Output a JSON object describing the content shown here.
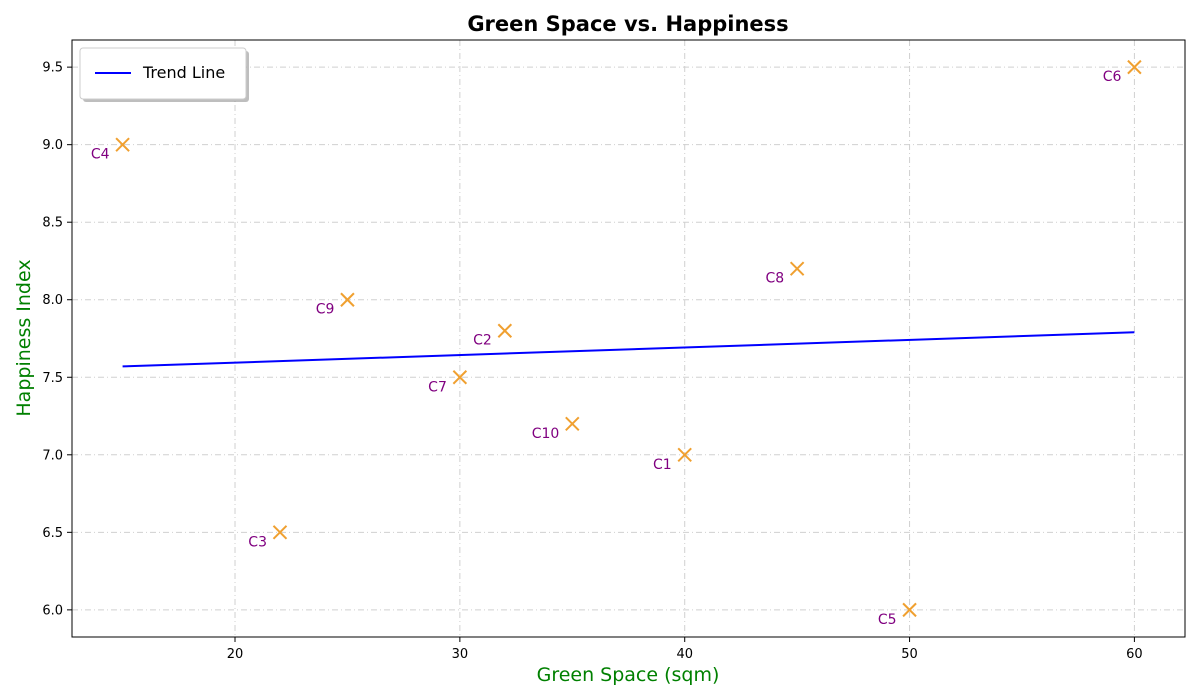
{
  "chart_data": {
    "type": "scatter",
    "title": "Green Space vs. Happiness",
    "xlabel": "Green Space (sqm)",
    "ylabel": "Happiness Index",
    "xlim": [
      12.75,
      62.25
    ],
    "ylim": [
      5.825,
      9.675
    ],
    "xticks": [
      20,
      30,
      40,
      50,
      60
    ],
    "yticks": [
      6.0,
      6.5,
      7.0,
      7.5,
      8.0,
      8.5,
      9.0,
      9.5
    ],
    "xtick_labels": [
      "20",
      "30",
      "40",
      "50",
      "60"
    ],
    "ytick_labels": [
      "6.0",
      "6.5",
      "7.0",
      "7.5",
      "8.0",
      "8.5",
      "9.0",
      "9.5"
    ],
    "grid": true,
    "legend": {
      "placement": "top-left",
      "entries": [
        "Trend Line"
      ]
    },
    "points": [
      {
        "label": "C1",
        "x": 40,
        "y": 7.0
      },
      {
        "label": "C2",
        "x": 32,
        "y": 7.8
      },
      {
        "label": "C3",
        "x": 22,
        "y": 6.5
      },
      {
        "label": "C4",
        "x": 15,
        "y": 9.0
      },
      {
        "label": "C5",
        "x": 50,
        "y": 6.0
      },
      {
        "label": "C6",
        "x": 60,
        "y": 9.5
      },
      {
        "label": "C7",
        "x": 30,
        "y": 7.5
      },
      {
        "label": "C8",
        "x": 45,
        "y": 8.2
      },
      {
        "label": "C9",
        "x": 25,
        "y": 8.0
      },
      {
        "label": "C10",
        "x": 35,
        "y": 7.2
      }
    ],
    "trend_line": {
      "name": "Trend Line",
      "x": [
        15,
        60
      ],
      "y": [
        7.57,
        7.79
      ]
    },
    "colors": {
      "marker": "#f0a030",
      "point_label": "#800080",
      "trend_line": "#0000ff",
      "axis_label": "#008000",
      "grid": "#d0d0d0"
    }
  }
}
